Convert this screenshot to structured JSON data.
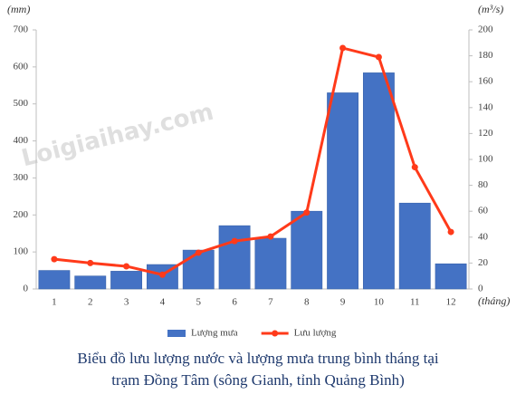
{
  "chart_data": {
    "type": "combo",
    "y_unit": "(mm)",
    "y2_unit": "(m³/s)",
    "x_unit": "(tháng)",
    "watermark": "Loigiaihay.com",
    "categories": [
      "1",
      "2",
      "3",
      "4",
      "5",
      "6",
      "7",
      "8",
      "9",
      "10",
      "11",
      "12"
    ],
    "series": [
      {
        "name": "Lượng mưa",
        "type": "bar",
        "color": "#4472c4",
        "values": [
          50,
          35,
          48,
          66,
          105,
          171,
          137,
          210,
          530,
          584,
          232,
          68
        ]
      },
      {
        "name": "Lưu lượng",
        "type": "line",
        "color": "#ff3a1a",
        "axis": "y2",
        "values": [
          23,
          20,
          17.5,
          11,
          28,
          37,
          40.5,
          59,
          186,
          179,
          94,
          44
        ]
      }
    ],
    "ylim": [
      0,
      700
    ],
    "yticks": [
      0,
      100,
      200,
      300,
      400,
      500,
      600,
      700
    ],
    "y2lim": [
      0,
      200
    ],
    "y2ticks": [
      0,
      20,
      40,
      60,
      80,
      100,
      120,
      140,
      160,
      180,
      200
    ],
    "legend": "bottom",
    "caption": [
      "Biểu đồ lưu lượng nước và lượng mưa trung bình tháng tại",
      "trạm Đồng Tâm (sông Gianh, tỉnh Quảng Bình)"
    ]
  }
}
